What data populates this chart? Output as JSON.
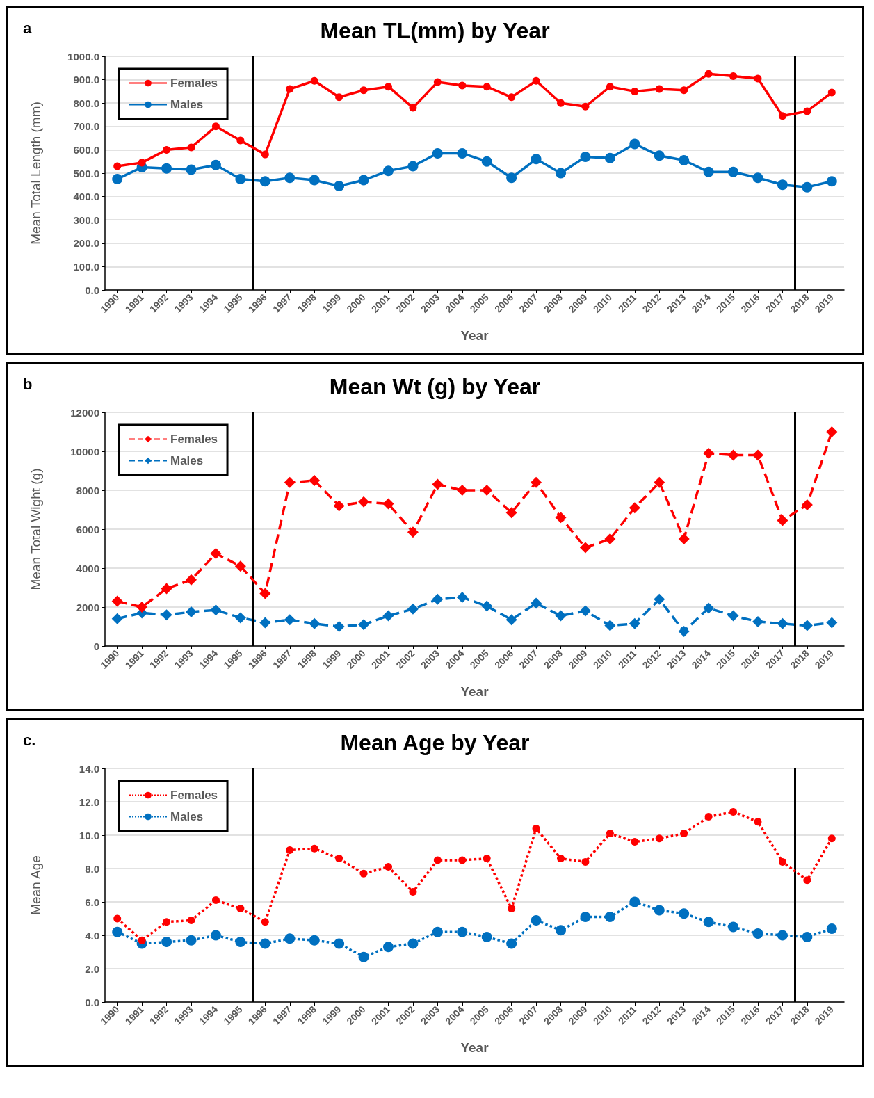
{
  "chart_data": [
    {
      "type": "line",
      "title": "Mean TL(mm) by Year",
      "xlabel": "Year",
      "ylabel": "Mean Total Length (mm)",
      "annotations": [
        "a"
      ],
      "x": [
        1990,
        1991,
        1992,
        1993,
        1994,
        1995,
        1996,
        1997,
        1998,
        1999,
        2000,
        2001,
        2002,
        2003,
        2004,
        2005,
        2006,
        2007,
        2008,
        2009,
        2010,
        2011,
        2012,
        2013,
        2014,
        2015,
        2016,
        2017,
        2018,
        2019
      ],
      "xlim": [
        1989.5,
        2019.5
      ],
      "xticks": [
        1990,
        1991,
        1992,
        1993,
        1994,
        1995,
        1996,
        1997,
        1998,
        1999,
        2000,
        2001,
        2002,
        2003,
        2004,
        2005,
        2006,
        2007,
        2008,
        2009,
        2010,
        2011,
        2012,
        2013,
        2014,
        2015,
        2016,
        2017,
        2018,
        2019
      ],
      "ylim": [
        0,
        1000
      ],
      "yticks": [
        {
          "value": 0,
          "label": "0.0"
        },
        {
          "value": 100,
          "label": "100.0"
        },
        {
          "value": 200,
          "label": "200.0"
        },
        {
          "value": 300,
          "label": "300.0"
        },
        {
          "value": 400,
          "label": "400.0"
        },
        {
          "value": 500,
          "label": "500.0"
        },
        {
          "value": 600,
          "label": "600.0"
        },
        {
          "value": 700,
          "label": "700.0"
        },
        {
          "value": 800,
          "label": "800.0"
        },
        {
          "value": 900,
          "label": "900.0"
        },
        {
          "value": 1000,
          "label": "1000.0"
        }
      ],
      "grid": "y",
      "legend": "top left",
      "marker": "circle",
      "line_style": "solid",
      "ref_lines": [
        {
          "axis": "x",
          "value": 1995.5,
          "color": "#000000"
        },
        {
          "axis": "x",
          "value": 2017.5,
          "color": "#000000"
        }
      ],
      "series": [
        {
          "name": "Females",
          "color": "#ff0000",
          "values": [
            530,
            545,
            600,
            610,
            700,
            640,
            580,
            860,
            895,
            825,
            855,
            870,
            780,
            890,
            875,
            870,
            825,
            895,
            800,
            785,
            870,
            850,
            860,
            855,
            925,
            915,
            905,
            745,
            765,
            845
          ]
        },
        {
          "name": "Males",
          "color": "#0070c0",
          "values": [
            475,
            525,
            520,
            515,
            535,
            475,
            465,
            480,
            470,
            445,
            470,
            510,
            530,
            585,
            585,
            550,
            480,
            560,
            500,
            570,
            565,
            625,
            575,
            555,
            505,
            505,
            480,
            450,
            440,
            465
          ]
        }
      ]
    },
    {
      "type": "line",
      "title": "Mean Wt (g) by Year",
      "xlabel": "Year",
      "ylabel": "Mean Total Wight (g)",
      "annotations": [
        "b"
      ],
      "x": [
        1990,
        1991,
        1992,
        1993,
        1994,
        1995,
        1996,
        1997,
        1998,
        1999,
        2000,
        2001,
        2002,
        2003,
        2004,
        2005,
        2006,
        2007,
        2008,
        2009,
        2010,
        2011,
        2012,
        2013,
        2014,
        2015,
        2016,
        2017,
        2018,
        2019
      ],
      "xlim": [
        1989.5,
        2019.5
      ],
      "xticks": [
        1990,
        1991,
        1992,
        1993,
        1994,
        1995,
        1996,
        1997,
        1998,
        1999,
        2000,
        2001,
        2002,
        2003,
        2004,
        2005,
        2006,
        2007,
        2008,
        2009,
        2010,
        2011,
        2012,
        2013,
        2014,
        2015,
        2016,
        2017,
        2018,
        2019
      ],
      "ylim": [
        0,
        12000
      ],
      "yticks": [
        0,
        2000,
        4000,
        6000,
        8000,
        10000,
        12000
      ],
      "grid": "y",
      "legend": "top left",
      "marker": "diamond",
      "line_style": "dashed",
      "ref_lines": [
        {
          "axis": "x",
          "value": 1995.5,
          "color": "#000000"
        },
        {
          "axis": "x",
          "value": 2017.5,
          "color": "#000000"
        }
      ],
      "series": [
        {
          "name": "Females",
          "color": "#ff0000",
          "values": [
            2300,
            2000,
            2950,
            3400,
            4750,
            4100,
            2700,
            8400,
            8500,
            7200,
            7400,
            7300,
            5850,
            8300,
            8000,
            8000,
            6850,
            8400,
            6600,
            5050,
            5500,
            7100,
            8400,
            5500,
            9900,
            9800,
            9800,
            6450,
            7250,
            11000
          ]
        },
        {
          "name": "Males",
          "color": "#0070c0",
          "values": [
            1400,
            1700,
            1600,
            1750,
            1850,
            1450,
            1200,
            1350,
            1150,
            1000,
            1100,
            1550,
            1900,
            2400,
            2500,
            2050,
            1350,
            2200,
            1550,
            1800,
            1050,
            1150,
            2400,
            750,
            1950,
            1550,
            1250,
            1150,
            1050,
            1200
          ]
        }
      ]
    },
    {
      "type": "line",
      "title": "Mean Age by Year",
      "xlabel": "Year",
      "ylabel": "Mean Age",
      "annotations": [
        "c."
      ],
      "x": [
        1990,
        1991,
        1992,
        1993,
        1994,
        1995,
        1996,
        1997,
        1998,
        1999,
        2000,
        2001,
        2002,
        2003,
        2004,
        2005,
        2006,
        2007,
        2008,
        2009,
        2010,
        2011,
        2012,
        2013,
        2014,
        2015,
        2016,
        2017,
        2018,
        2019
      ],
      "xlim": [
        1989.5,
        2019.5
      ],
      "xticks": [
        1990,
        1991,
        1992,
        1993,
        1994,
        1995,
        1996,
        1997,
        1998,
        1999,
        2000,
        2001,
        2002,
        2003,
        2004,
        2005,
        2006,
        2007,
        2008,
        2009,
        2010,
        2011,
        2012,
        2013,
        2014,
        2015,
        2016,
        2017,
        2018,
        2019
      ],
      "ylim": [
        0,
        14
      ],
      "yticks": [
        {
          "value": 0,
          "label": "0.0"
        },
        {
          "value": 2,
          "label": "2.0"
        },
        {
          "value": 4,
          "label": "4.0"
        },
        {
          "value": 6,
          "label": "6.0"
        },
        {
          "value": 8,
          "label": "8.0"
        },
        {
          "value": 10,
          "label": "10.0"
        },
        {
          "value": 12,
          "label": "12.0"
        },
        {
          "value": 14,
          "label": "14.0"
        }
      ],
      "grid": "y",
      "legend": "top left",
      "marker": "circle",
      "line_style": "dotted",
      "ref_lines": [
        {
          "axis": "x",
          "value": 1995.5,
          "color": "#000000"
        },
        {
          "axis": "x",
          "value": 2017.5,
          "color": "#000000"
        }
      ],
      "series": [
        {
          "name": "Females",
          "color": "#ff0000",
          "values": [
            5.0,
            3.7,
            4.8,
            4.9,
            6.1,
            5.6,
            4.8,
            9.1,
            9.2,
            8.6,
            7.7,
            8.1,
            6.6,
            8.5,
            8.5,
            8.6,
            5.6,
            10.4,
            8.6,
            8.4,
            10.1,
            9.6,
            9.8,
            10.1,
            11.1,
            11.4,
            10.8,
            8.4,
            7.3,
            9.8
          ]
        },
        {
          "name": "Males",
          "color": "#0070c0",
          "values": [
            4.2,
            3.5,
            3.6,
            3.7,
            4.0,
            3.6,
            3.5,
            3.8,
            3.7,
            3.5,
            2.7,
            3.3,
            3.5,
            4.2,
            4.2,
            3.9,
            3.5,
            4.9,
            4.3,
            5.1,
            5.1,
            6.0,
            5.5,
            5.3,
            4.8,
            4.5,
            4.1,
            4.0,
            3.9,
            4.4
          ]
        }
      ]
    }
  ]
}
